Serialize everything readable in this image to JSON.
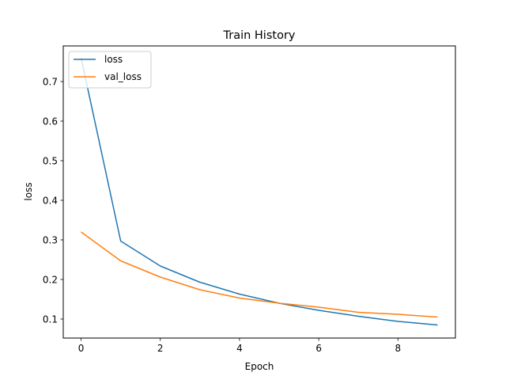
{
  "chart_data": {
    "type": "line",
    "title": "Train History",
    "xlabel": "Epoch",
    "ylabel": "loss",
    "x": [
      0,
      1,
      2,
      3,
      4,
      5,
      6,
      7,
      8,
      9
    ],
    "xlim": [
      -0.45,
      9.45
    ],
    "ylim": [
      0.052,
      0.79
    ],
    "xticks": [
      0,
      2,
      4,
      6,
      8
    ],
    "xtick_labels": [
      "0",
      "2",
      "4",
      "6",
      "8"
    ],
    "yticks": [
      0.1,
      0.2,
      0.3,
      0.4,
      0.5,
      0.6,
      0.7
    ],
    "ytick_labels": [
      "0.1",
      "0.2",
      "0.3",
      "0.4",
      "0.5",
      "0.6",
      "0.7"
    ],
    "grid": false,
    "legend_position": "upper left",
    "series": [
      {
        "name": "loss",
        "color": "#1f77b4",
        "values": [
          0.76,
          0.297,
          0.234,
          0.193,
          0.163,
          0.14,
          0.122,
          0.107,
          0.094,
          0.085
        ]
      },
      {
        "name": "val_loss",
        "color": "#ff7f0e",
        "values": [
          0.32,
          0.247,
          0.206,
          0.174,
          0.153,
          0.14,
          0.13,
          0.117,
          0.112,
          0.105
        ]
      }
    ]
  }
}
